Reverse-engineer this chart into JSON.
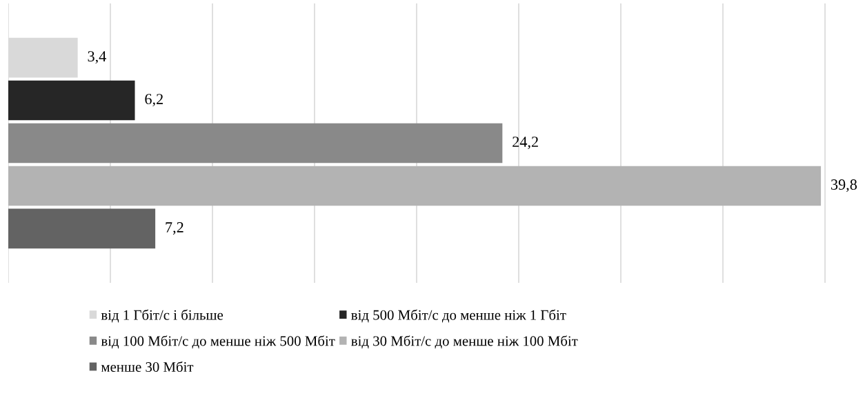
{
  "chart_data": {
    "type": "bar",
    "orientation": "horizontal",
    "categories": [
      null
    ],
    "series": [
      {
        "name": "від 1 Гбіт/с і більше",
        "color": "#d9d9d9",
        "values": [
          3.4
        ],
        "value_labels": [
          "3,4"
        ]
      },
      {
        "name": "від 500 Мбіт/с до менше ніж 1 Гбіт",
        "color": "#262626",
        "values": [
          6.2
        ],
        "value_labels": [
          "6,2"
        ]
      },
      {
        "name": "від 100 Мбіт/с до менше ніж 500 Мбіт",
        "color": "#898989",
        "values": [
          24.2
        ],
        "value_labels": [
          "24,2"
        ]
      },
      {
        "name": "від 30 Мбіт/с до менше ніж 100 Мбіт",
        "color": "#b3b3b3",
        "values": [
          39.8
        ],
        "value_labels": [
          "39,8"
        ]
      },
      {
        "name": "менше 30 Мбіт",
        "color": "#636363",
        "values": [
          7.2
        ],
        "value_labels": [
          "7,2"
        ]
      }
    ],
    "grid": "x",
    "legend": "bottom"
  }
}
